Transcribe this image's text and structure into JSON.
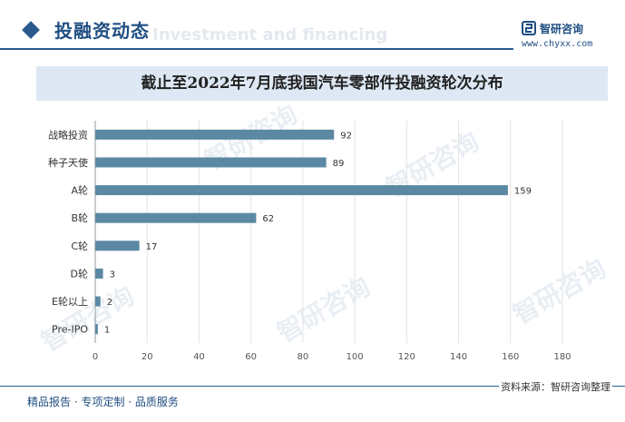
{
  "header": {
    "section_title": "投融资动态",
    "section_subtitle_en": "Investment and financing",
    "brand_name": "智研咨询",
    "brand_url": "www.chyxx.com"
  },
  "watermark_text": "智研咨询",
  "source": "资料来源：智研咨询整理",
  "footer": "精品报告 · 专项定制 · 品质服务",
  "colors": {
    "bar": "#5b89a3",
    "accent": "#1f4e82",
    "title_bg": "#dde8f4"
  },
  "chart_data": {
    "type": "bar",
    "orientation": "horizontal",
    "title": "截止至2022年7月底我国汽车零部件投融资轮次分布",
    "categories": [
      "战略投资",
      "种子天使",
      "A轮",
      "B轮",
      "C轮",
      "D轮",
      "E轮以上",
      "Pre-IPO"
    ],
    "series": [
      {
        "values": [
          92,
          89,
          159,
          62,
          17,
          3,
          2,
          1
        ]
      }
    ],
    "xlim": [
      0,
      180
    ],
    "xticks": [
      0,
      20,
      40,
      60,
      80,
      100,
      120,
      140,
      160,
      180
    ],
    "grid": "vertical",
    "data_labels": true,
    "legend": "none"
  }
}
